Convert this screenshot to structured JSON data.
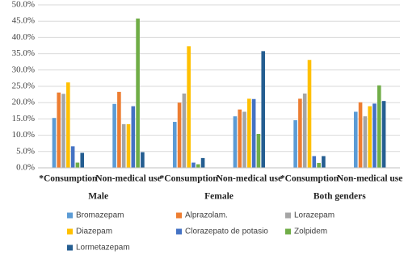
{
  "chart_data": {
    "type": "bar",
    "categories": [
      "*Consumption",
      "Non-medical use",
      "*Consumption",
      "Non-medical use",
      "*Consumption",
      "Non-medical use"
    ],
    "groups": [
      "Male",
      "Female",
      "Both genders"
    ],
    "series": [
      {
        "name": "Bromazepam",
        "color": "#5b9bd5",
        "values": [
          15.3,
          19.6,
          14.1,
          15.8,
          14.6,
          17.2
        ]
      },
      {
        "name": "Alprazolam.",
        "color": "#ed7d31",
        "values": [
          23.1,
          23.3,
          20.0,
          17.9,
          21.2,
          20.1
        ]
      },
      {
        "name": "Lorazepam",
        "color": "#a5a5a5",
        "values": [
          22.7,
          13.4,
          22.8,
          17.2,
          22.8,
          15.8
        ]
      },
      {
        "name": "Diazepam",
        "color": "#ffc000",
        "values": [
          26.2,
          13.4,
          37.3,
          21.2,
          33.1,
          18.9
        ]
      },
      {
        "name": "Clorazepato de potasio",
        "color": "#4472c4",
        "values": [
          6.6,
          18.9,
          1.6,
          21.1,
          3.6,
          19.7
        ]
      },
      {
        "name": "Zolpidem",
        "color": "#70ad47",
        "values": [
          1.6,
          45.8,
          1.1,
          10.4,
          1.5,
          25.3
        ]
      },
      {
        "name": "Lormetazepam",
        "color": "#255e91",
        "values": [
          4.6,
          4.8,
          3.0,
          35.8,
          3.6,
          20.5
        ]
      }
    ],
    "ylim": [
      0,
      50
    ],
    "yticks": [
      {
        "value": 0,
        "label": "0.0%"
      },
      {
        "value": 5,
        "label": "5.0%"
      },
      {
        "value": 10,
        "label": "10.0%"
      },
      {
        "value": 15,
        "label": "15.0%"
      },
      {
        "value": 20,
        "label": "20.0%"
      },
      {
        "value": 25,
        "label": "25.0%"
      },
      {
        "value": 30,
        "label": "30.0%"
      },
      {
        "value": 35,
        "label": "35.0%"
      },
      {
        "value": 40,
        "label": "40.0%"
      },
      {
        "value": 45,
        "label": "45.0%"
      },
      {
        "value": 50,
        "label": "50.0%"
      }
    ],
    "grid": true
  }
}
